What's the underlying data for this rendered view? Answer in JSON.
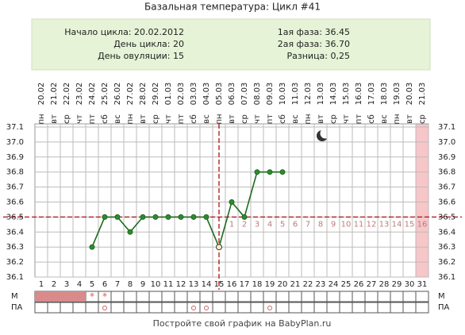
{
  "chart_data": {
    "type": "line",
    "title": "Базальная температура: Цикл #41",
    "info_left": [
      "Начало цикла: 20.02.2012",
      "День цикла: 20",
      "День овуляции: 15"
    ],
    "info_right": [
      "1ая фаза: 36.45",
      "2ая фаза: 36.70",
      "Разница: 0,25"
    ],
    "x": [
      1,
      2,
      3,
      4,
      5,
      6,
      7,
      8,
      9,
      10,
      11,
      12,
      13,
      14,
      15,
      16,
      17,
      18,
      19,
      20,
      21,
      22,
      23,
      24,
      25,
      26,
      27,
      28,
      29,
      30,
      31
    ],
    "dates": [
      "20.02",
      "21.02",
      "22.02",
      "23.02",
      "24.02",
      "25.02",
      "26.02",
      "27.02",
      "28.02",
      "29.02",
      "01.03",
      "02.03",
      "03.03",
      "04.03",
      "05.03",
      "06.03",
      "07.03",
      "08.03",
      "09.03",
      "10.03",
      "11.03",
      "12.03",
      "13.03",
      "14.03",
      "15.03",
      "16.03",
      "17.03",
      "18.03",
      "19.03",
      "20.03",
      "21.03"
    ],
    "weekdays": [
      "пн",
      "вт",
      "ср",
      "чт",
      "пт",
      "сб",
      "вс",
      "пн",
      "вт",
      "ср",
      "чт",
      "пт",
      "сб",
      "вс",
      "пн",
      "вт",
      "ср",
      "чт",
      "пт",
      "сб",
      "вс",
      "пн",
      "вт",
      "ср",
      "чт",
      "пт",
      "сб",
      "вс",
      "пн",
      "вт",
      "ср"
    ],
    "values": [
      null,
      null,
      null,
      null,
      36.3,
      36.5,
      36.5,
      36.4,
      36.5,
      36.5,
      36.5,
      36.5,
      36.5,
      36.5,
      36.3,
      36.6,
      36.5,
      36.8,
      36.8,
      36.8,
      null,
      null,
      null,
      null,
      null,
      null,
      null,
      null,
      null,
      null,
      null
    ],
    "color": "#1d6b1d",
    "ylim": [
      36.1,
      37.1
    ],
    "yticks": [
      36.1,
      36.2,
      36.3,
      36.4,
      36.5,
      36.6,
      36.7,
      36.8,
      36.9,
      {
        "value": 37,
        "label": "37.0"
      },
      37.1
    ],
    "grid": true,
    "coverline": 36.5,
    "ovulation_day": 15,
    "phase2_days": [
      1,
      2,
      3,
      4,
      5,
      6,
      7,
      8,
      9,
      10,
      11,
      12,
      13,
      14,
      15,
      16
    ],
    "highlight_day": 31,
    "row_labels": [
      "М",
      "ПА"
    ],
    "menstruation_days": [
      1,
      2,
      3,
      4
    ],
    "spotting": {
      "days": [
        5,
        6
      ],
      "symbol": "*"
    },
    "intercourse_days": [
      6,
      13,
      14,
      19
    ],
    "footer": "Постройте свой график на BabyPlan.ru"
  }
}
